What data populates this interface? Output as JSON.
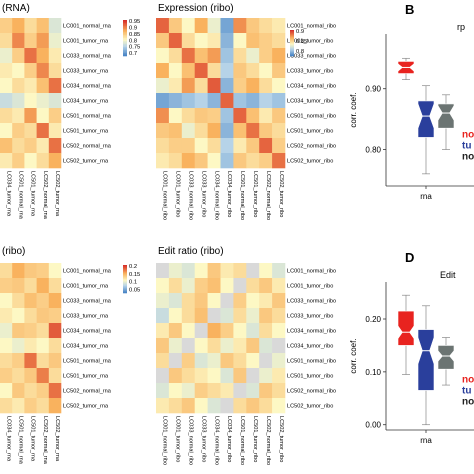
{
  "titles": {
    "top_left": "(RNA)",
    "top_middle": "Expression (ribo)",
    "bottom_left": "(ribo)",
    "bottom_middle": "Edit ratio (ribo)",
    "top_right": "rp",
    "bottom_right": "Edit"
  },
  "panel_letters": {
    "top": "B",
    "bottom": "D"
  },
  "row_labels_rna": [
    "LC001_normal_rna",
    "LC001_tumor_rna",
    "LC033_normal_rna",
    "LC033_tumor_rna",
    "LC034_normal_rna",
    "LC034_tumor_rna",
    "LC501_normal_rna",
    "LC501_tumor_rna",
    "LC502_normal_rna",
    "LC502_tumor_rna"
  ],
  "row_labels_ribo": [
    "LC001_normal_ribo",
    "LC001_tumor_ribo",
    "LC033_normal_ribo",
    "LC033_tumor_ribo",
    "LC034_normal_ribo",
    "LC034_tumor_ribo",
    "LC501_normal_ribo",
    "LC501_tumor_ribo",
    "LC502_normal_ribo",
    "LC502_tumor_ribo"
  ],
  "col_labels_left_visible": [
    "LC034_tumor_rna",
    "LC501_normal_rna",
    "LC501_tumor_rna",
    "LC502_normal_rna",
    "LC502_tumor_rna"
  ],
  "col_labels_ribo": [
    "LC001_normal_ribo",
    "LC001_tumor_ribo",
    "LC033_normal_ribo",
    "LC033_tumor_ribo",
    "LC034_normal_ribo",
    "LC034_tumor_ribo",
    "LC501_normal_ribo",
    "LC501_tumor_ribo",
    "LC502_normal_ribo",
    "LC502_tumor_ribo"
  ],
  "legend_top_left": [
    "0.95",
    "0.9",
    "0.85",
    "0.8",
    "0.75",
    "0.7"
  ],
  "legend_top_middle": [
    "0.9",
    "0.85",
    "0.8"
  ],
  "legend_bottom_left": [
    "0.2",
    "0.15",
    "0.1",
    "0.05"
  ],
  "colors": {
    "high": "#d7302a",
    "mid": "#fdf8c4",
    "low": "#4a86c6"
  },
  "chart_data": [
    {
      "type": "heatmap",
      "panel": "top-left (RNA, cropped)",
      "title": "(RNA)",
      "rows": 10,
      "cols": 5,
      "values": [
        [
          0.6,
          0.7,
          0.55,
          0.65,
          0.35
        ],
        [
          0.55,
          0.8,
          0.6,
          0.75,
          0.4
        ],
        [
          0.4,
          0.6,
          0.85,
          0.7,
          0.5
        ],
        [
          0.5,
          0.45,
          0.6,
          0.8,
          0.55
        ],
        [
          0.45,
          0.55,
          0.5,
          0.65,
          0.85
        ],
        [
          0.3,
          0.35,
          0.45,
          0.4,
          0.35
        ],
        [
          0.55,
          0.5,
          0.75,
          0.45,
          0.6
        ],
        [
          0.45,
          0.6,
          0.55,
          0.85,
          0.5
        ],
        [
          0.65,
          0.55,
          0.6,
          0.5,
          0.85
        ],
        [
          0.5,
          0.6,
          0.45,
          0.55,
          0.7
        ]
      ]
    },
    {
      "type": "heatmap",
      "panel": "top-middle",
      "title": "Expression (ribo)",
      "rows": 10,
      "cols": 10,
      "values": [
        [
          0.88,
          0.62,
          0.45,
          0.7,
          0.4,
          0.1,
          0.78,
          0.62,
          0.55,
          0.5
        ],
        [
          0.62,
          0.88,
          0.55,
          0.45,
          0.5,
          0.15,
          0.45,
          0.65,
          0.6,
          0.55
        ],
        [
          0.45,
          0.55,
          0.85,
          0.65,
          0.75,
          0.2,
          0.55,
          0.4,
          0.6,
          0.7
        ],
        [
          0.7,
          0.45,
          0.65,
          0.88,
          0.55,
          0.25,
          0.62,
          0.55,
          0.45,
          0.62
        ],
        [
          0.4,
          0.5,
          0.75,
          0.55,
          0.9,
          0.15,
          0.6,
          0.7,
          0.55,
          0.45
        ],
        [
          0.1,
          0.15,
          0.2,
          0.25,
          0.15,
          0.88,
          0.2,
          0.15,
          0.25,
          0.2
        ],
        [
          0.78,
          0.45,
          0.55,
          0.62,
          0.6,
          0.2,
          0.88,
          0.65,
          0.5,
          0.62
        ],
        [
          0.62,
          0.65,
          0.4,
          0.55,
          0.7,
          0.15,
          0.65,
          0.85,
          0.62,
          0.55
        ],
        [
          0.55,
          0.6,
          0.6,
          0.45,
          0.55,
          0.25,
          0.5,
          0.62,
          0.88,
          0.6
        ],
        [
          0.5,
          0.55,
          0.7,
          0.62,
          0.45,
          0.2,
          0.62,
          0.55,
          0.6,
          0.85
        ]
      ]
    },
    {
      "type": "heatmap",
      "panel": "bottom-left (ribo, cropped)",
      "title": "(ribo)",
      "rows": 10,
      "cols": 5,
      "values": [
        [
          0.55,
          0.7,
          0.62,
          0.6,
          0.45
        ],
        [
          0.6,
          0.62,
          0.55,
          0.7,
          0.55
        ],
        [
          0.45,
          0.55,
          0.65,
          0.6,
          0.7
        ],
        [
          0.5,
          0.45,
          0.55,
          0.62,
          0.6
        ],
        [
          0.4,
          0.62,
          0.6,
          0.55,
          0.9
        ],
        [
          0.45,
          0.4,
          0.5,
          0.45,
          0.55
        ],
        [
          0.55,
          0.6,
          0.85,
          0.55,
          0.62
        ],
        [
          0.6,
          0.55,
          0.62,
          0.82,
          0.55
        ],
        [
          0.45,
          0.62,
          0.55,
          0.6,
          0.85
        ],
        [
          0.55,
          0.5,
          0.6,
          0.55,
          0.7
        ]
      ]
    },
    {
      "type": "heatmap",
      "panel": "bottom-middle",
      "title": "Edit ratio (ribo)",
      "rows": 10,
      "cols": 10,
      "values": [
        [
          0.55,
          0.4,
          0.35,
          0.45,
          0.62,
          0.5,
          0.55,
          0.62,
          0.45,
          0.35
        ],
        [
          0.45,
          0.55,
          0.4,
          0.6,
          0.65,
          0.45,
          0.4,
          0.55,
          0.62,
          0.5
        ],
        [
          0.4,
          0.35,
          0.55,
          0.62,
          0.45,
          0.4,
          0.6,
          0.45,
          0.5,
          0.62
        ],
        [
          0.3,
          0.45,
          0.55,
          0.65,
          0.5,
          0.35,
          0.55,
          0.4,
          0.62,
          0.55
        ],
        [
          0.5,
          0.62,
          0.45,
          0.55,
          0.7,
          0.6,
          0.45,
          0.35,
          0.55,
          0.45
        ],
        [
          0.62,
          0.4,
          0.35,
          0.45,
          0.55,
          0.4,
          0.5,
          0.62,
          0.35,
          0.6
        ],
        [
          0.55,
          0.5,
          0.6,
          0.35,
          0.4,
          0.62,
          0.55,
          0.45,
          0.6,
          0.4
        ],
        [
          0.4,
          0.62,
          0.55,
          0.5,
          0.45,
          0.35,
          0.62,
          0.55,
          0.4,
          0.5
        ],
        [
          0.35,
          0.45,
          0.4,
          0.6,
          0.55,
          0.5,
          0.45,
          0.35,
          0.62,
          0.55
        ],
        [
          0.5,
          0.55,
          0.62,
          0.45,
          0.35,
          0.45,
          0.55,
          0.62,
          0.55,
          0.45
        ]
      ]
    },
    {
      "type": "box",
      "panel": "top-right",
      "title": "rp",
      "ylabel": "corr. coef.",
      "xcategory": "rna",
      "yticks": [
        "0.80",
        "0.90"
      ],
      "ylim": [
        0.74,
        0.99
      ],
      "boxes": [
        {
          "color": "#e8231f",
          "q1": 0.925,
          "median": 0.935,
          "q3": 0.945,
          "whisker_lo": 0.915,
          "whisker_hi": 0.95,
          "notch": 0.006
        },
        {
          "color": "#2a3f9c",
          "q1": 0.82,
          "median": 0.855,
          "q3": 0.88,
          "whisker_lo": 0.76,
          "whisker_hi": 0.905,
          "notch": 0.02
        },
        {
          "color": "#6b7472",
          "q1": 0.835,
          "median": 0.86,
          "q3": 0.875,
          "whisker_lo": 0.8,
          "whisker_hi": 0.89,
          "notch": 0.012
        }
      ],
      "legend_fragments": [
        {
          "text": "no",
          "color": "#e8231f"
        },
        {
          "text": "tu",
          "color": "#2a3f9c"
        },
        {
          "text": "no",
          "color": "#222222"
        }
      ]
    },
    {
      "type": "box",
      "panel": "bottom-right",
      "title": "Edit",
      "ylabel": "corr. coef.",
      "xcategory": "rna",
      "yticks": [
        "0.00",
        "0.10",
        "0.20"
      ],
      "ylim": [
        -0.01,
        0.27
      ],
      "boxes": [
        {
          "color": "#e8231f",
          "q1": 0.15,
          "median": 0.175,
          "q3": 0.215,
          "whisker_lo": 0.095,
          "whisker_hi": 0.245,
          "notch": 0.012
        },
        {
          "color": "#2a3f9c",
          "q1": 0.065,
          "median": 0.14,
          "q3": 0.18,
          "whisker_lo": 0.0,
          "whisker_hi": 0.225,
          "notch": 0.025
        },
        {
          "color": "#6b7472",
          "q1": 0.105,
          "median": 0.13,
          "q3": 0.15,
          "whisker_lo": 0.075,
          "whisker_hi": 0.165,
          "notch": 0.01
        }
      ],
      "legend_fragments": [
        {
          "text": "no",
          "color": "#e8231f"
        },
        {
          "text": "tu",
          "color": "#2a3f9c"
        },
        {
          "text": "no",
          "color": "#222222"
        }
      ]
    }
  ]
}
